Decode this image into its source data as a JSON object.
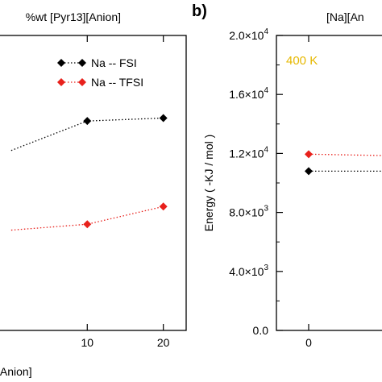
{
  "panel_label": "b)",
  "chart_data": [
    {
      "type": "line",
      "title": "%wt [Pyr13][Anion]",
      "xlabel": "[Anion]",
      "ylabel": "",
      "x_ticks": [
        10,
        20
      ],
      "xlim": [
        -2,
        23
      ],
      "ylim": [
        0,
        1
      ],
      "y_values_normalized": true,
      "legend_position": "top-right",
      "series": [
        {
          "name": "Na -- FSI",
          "color": "#000000",
          "x": [
            0,
            10,
            20
          ],
          "y": [
            0.61,
            0.71,
            0.72
          ]
        },
        {
          "name": "Na -- TFSI",
          "color": "#e8211c",
          "x": [
            0,
            10,
            20
          ],
          "y": [
            0.34,
            0.36,
            0.42
          ]
        }
      ]
    },
    {
      "type": "line",
      "title": "[Na][An",
      "annotation": "400 K",
      "annotation_color": "#e6b800",
      "xlabel": "",
      "ylabel": "Energy ( -KJ / mol )",
      "x_ticks": [
        0
      ],
      "xlim": [
        -1,
        2.5
      ],
      "ylim": [
        0,
        20000
      ],
      "y_ticks": [
        {
          "value": 0,
          "mantissa": "0.0",
          "exp": ""
        },
        {
          "value": 4000,
          "mantissa": "4.0×10",
          "exp": "3"
        },
        {
          "value": 8000,
          "mantissa": "8.0×10",
          "exp": "3"
        },
        {
          "value": 12000,
          "mantissa": "1.2×10",
          "exp": "4"
        },
        {
          "value": 16000,
          "mantissa": "1.6×10",
          "exp": "4"
        },
        {
          "value": 20000,
          "mantissa": "2.0×10",
          "exp": "4"
        }
      ],
      "series": [
        {
          "name": "Na -- FSI",
          "color": "#000000",
          "x": [
            0,
            2.5
          ],
          "y": [
            10800,
            10800
          ]
        },
        {
          "name": "Na -- TFSI",
          "color": "#e8211c",
          "x": [
            0,
            2.5
          ],
          "y": [
            11950,
            11850
          ]
        }
      ]
    }
  ]
}
